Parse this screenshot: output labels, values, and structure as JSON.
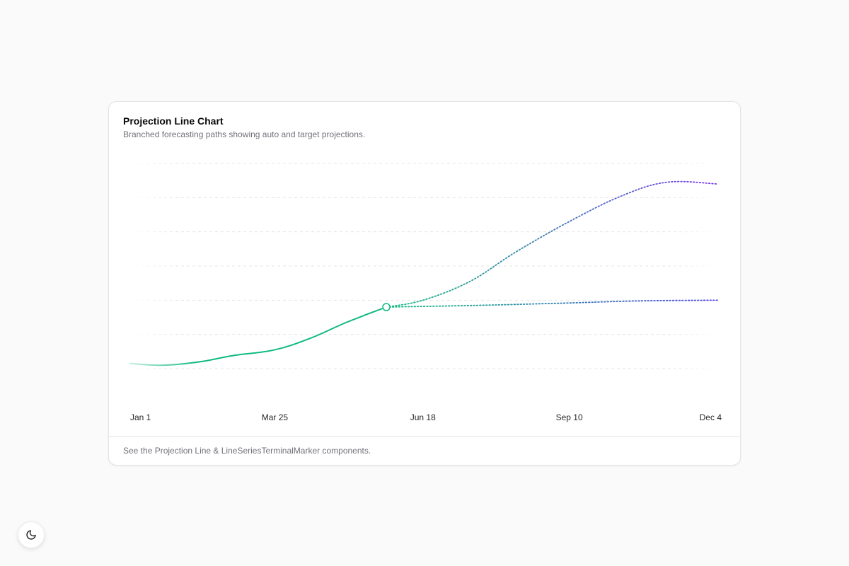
{
  "card": {
    "title": "Projection Line Chart",
    "description": "Branched forecasting paths showing auto and target projections.",
    "footer": "See the Projection Line & LineSeriesTerminalMarker components."
  },
  "theme_toggle": {
    "icon": "moon-icon"
  },
  "chart_data": {
    "type": "line",
    "title": "",
    "xlabel": "",
    "ylabel": "",
    "x_ticks": [
      "Jan 1",
      "Mar 25",
      "Jun 18",
      "Sep 10",
      "Dec 4"
    ],
    "ylim": [
      0,
      6
    ],
    "y_ticks": [
      0,
      1,
      2,
      3,
      4,
      5,
      6
    ],
    "y_tick_labels_visible": false,
    "grid": true,
    "colors": {
      "actual": "#10b981",
      "target_start": "#10b981",
      "target_end": "#7c3aed",
      "auto_start": "#10b981",
      "auto_end": "#4f46e5",
      "grid": "#e4e4e7"
    },
    "series": [
      {
        "style": "solid",
        "terminal_marker": true,
        "points": [
          {
            "x": "Jan 1",
            "y": 0.15
          },
          {
            "x": "Jan 20",
            "y": 0.1
          },
          {
            "x": "Feb 10",
            "y": 0.2
          },
          {
            "x": "Mar 1",
            "y": 0.38
          },
          {
            "x": "Mar 25",
            "y": 0.55
          },
          {
            "x": "Apr 15",
            "y": 0.9
          },
          {
            "x": "May 5",
            "y": 1.35
          },
          {
            "x": "May 28",
            "y": 1.8
          }
        ]
      },
      {
        "style": "dotted",
        "points": [
          {
            "x": "May 28",
            "y": 1.8
          },
          {
            "x": "Jun 18",
            "y": 2.0
          },
          {
            "x": "Jul 15",
            "y": 2.55
          },
          {
            "x": "Aug 10",
            "y": 3.4
          },
          {
            "x": "Sep 10",
            "y": 4.3
          },
          {
            "x": "Oct 10",
            "y": 5.05
          },
          {
            "x": "Nov 5",
            "y": 5.45
          },
          {
            "x": "Dec 4",
            "y": 5.4
          }
        ]
      },
      {
        "style": "dotted",
        "points": [
          {
            "x": "May 28",
            "y": 1.8
          },
          {
            "x": "Jul 20",
            "y": 1.85
          },
          {
            "x": "Sep 10",
            "y": 1.92
          },
          {
            "x": "Oct 20",
            "y": 1.98
          },
          {
            "x": "Dec 4",
            "y": 2.0
          }
        ]
      }
    ]
  }
}
